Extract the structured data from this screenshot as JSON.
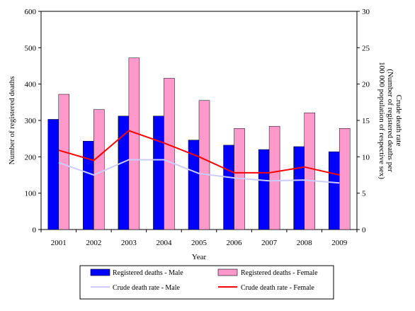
{
  "chart_data": {
    "type": "bar",
    "categories": [
      "2001",
      "2002",
      "2003",
      "2004",
      "2005",
      "2006",
      "2007",
      "2008",
      "2009"
    ],
    "xlabel": "Year",
    "ylabel_left": "Number of registered deaths",
    "ylabel_right": [
      "Crude death rate",
      "(Number of registered deaths per",
      "100 000 population of respective sex)"
    ],
    "ylim_left": [
      0,
      600
    ],
    "yticks_left": [
      "0",
      "100",
      "200",
      "300",
      "400",
      "500",
      "600"
    ],
    "ylim_right": [
      0,
      30
    ],
    "yticks_right": [
      "0",
      "5",
      "10",
      "15",
      "20",
      "25",
      "30"
    ],
    "grid": false,
    "legend_position": "bottom",
    "bar_series": [
      {
        "name": "Registered deaths - Male",
        "color": "#0000ff",
        "values": [
          303,
          243,
          312,
          312,
          246,
          232,
          220,
          228,
          214
        ]
      },
      {
        "name": "Registered deaths - Female",
        "color": "#ff99cc",
        "values": [
          372,
          330,
          472,
          416,
          355,
          278,
          284,
          321,
          278
        ]
      }
    ],
    "line_series": [
      {
        "name": "Crude death rate - Male",
        "color": "#ccccff",
        "axis": "right",
        "values": [
          9.2,
          7.5,
          9.6,
          9.6,
          7.7,
          7.1,
          6.7,
          6.8,
          6.4
        ]
      },
      {
        "name": "Crude death rate - Female",
        "color": "#ff0000",
        "axis": "right",
        "values": [
          10.9,
          9.5,
          13.6,
          11.9,
          10.0,
          7.8,
          7.8,
          8.6,
          7.5
        ]
      }
    ]
  }
}
